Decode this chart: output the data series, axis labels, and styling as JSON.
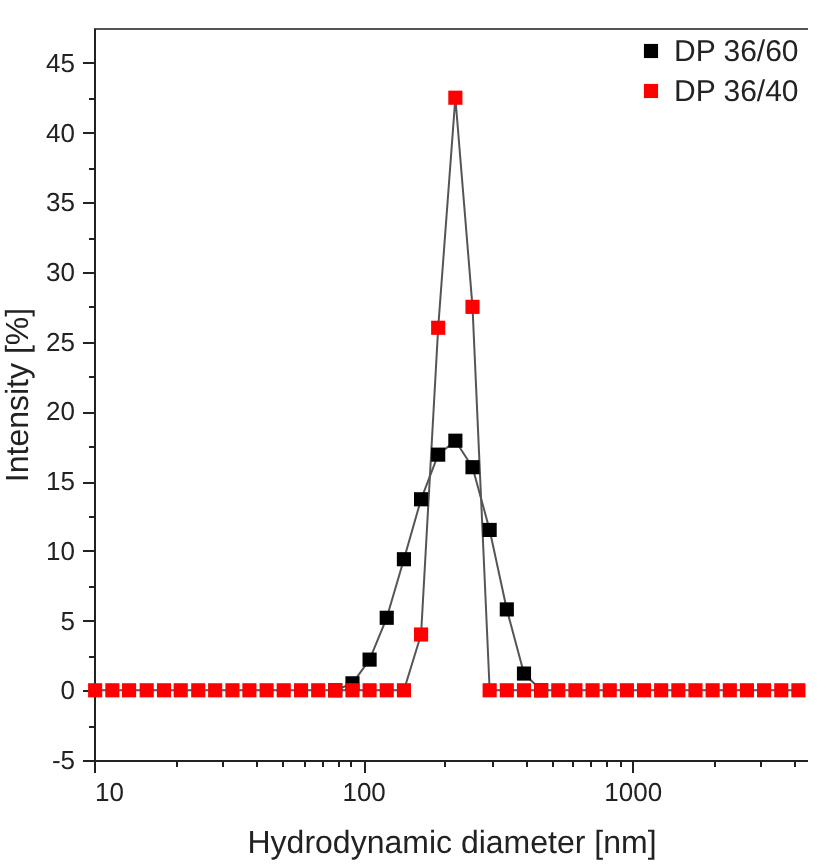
{
  "chart_data": {
    "type": "line",
    "xlabel": "Hydrodynamic diameter [nm]",
    "ylabel": "Intensity [%]",
    "log": "x",
    "marker": "square",
    "line_style": "solid",
    "grid": false,
    "legend": "top right",
    "xlim": [
      10,
      4500
    ],
    "xticks": [
      10,
      {
        "value": 20,
        "label": null
      },
      {
        "value": 30,
        "label": null
      },
      {
        "value": 40,
        "label": null
      },
      {
        "value": 50,
        "label": null
      },
      {
        "value": 60,
        "label": null
      },
      {
        "value": 70,
        "label": null
      },
      {
        "value": 80,
        "label": null
      },
      {
        "value": 90,
        "label": null
      },
      100,
      {
        "value": 200,
        "label": null
      },
      {
        "value": 300,
        "label": null
      },
      {
        "value": 400,
        "label": null
      },
      {
        "value": 500,
        "label": null
      },
      {
        "value": 600,
        "label": null
      },
      {
        "value": 700,
        "label": null
      },
      {
        "value": 800,
        "label": null
      },
      {
        "value": 900,
        "label": null
      },
      1000,
      {
        "value": 2000,
        "label": null
      },
      {
        "value": 3000,
        "label": null
      },
      {
        "value": 4000,
        "label": null
      }
    ],
    "ylim": [
      -5,
      47.5
    ],
    "yticks": [
      -5,
      {
        "value": -2.5,
        "label": null
      },
      0,
      {
        "value": 2.5,
        "label": null
      },
      5,
      {
        "value": 7.5,
        "label": null
      },
      10,
      {
        "value": 12.5,
        "label": null
      },
      15,
      {
        "value": 17.5,
        "label": null
      },
      20,
      {
        "value": 22.5,
        "label": null
      },
      25,
      {
        "value": 27.5,
        "label": null
      },
      30,
      {
        "value": 32.5,
        "label": null
      },
      35,
      {
        "value": 37.5,
        "label": null
      },
      40,
      {
        "value": 42.5,
        "label": null
      },
      45
    ],
    "series": [
      {
        "name": "DP 36/60",
        "color": "#000000",
        "x": [
          78.8,
          91.3,
          105.7,
          122.4,
          141.8,
          164.2,
          190.1,
          220.2,
          255,
          295.3,
          342,
          396.1,
          458.7
        ],
        "values": [
          0,
          0.5,
          2.2,
          5.2,
          9.4,
          13.7,
          16.9,
          17.9,
          16.0,
          11.5,
          5.8,
          1.2,
          0
        ]
      },
      {
        "name": "DP 36/40",
        "color": "#ff0000",
        "x": [
          10.1,
          11.7,
          13.5,
          15.7,
          18.2,
          21.0,
          24.4,
          28.2,
          32.7,
          37.8,
          43.8,
          50.7,
          58.8,
          68.1,
          78.8,
          91.3,
          105.7,
          122.4,
          141.8,
          164.2,
          190.1,
          220.2,
          255,
          295.3,
          342,
          396.1,
          458.7,
          531.2,
          615.1,
          712.4,
          825,
          955.4,
          1106,
          1281,
          1484,
          1718,
          1990,
          2305,
          2669,
          3091,
          3580,
          4145
        ],
        "values": [
          0,
          0,
          0,
          0,
          0,
          0,
          0,
          0,
          0,
          0,
          0,
          0,
          0,
          0,
          0,
          0,
          0,
          0,
          0,
          4.0,
          26.0,
          42.5,
          27.5,
          0,
          0,
          0,
          0,
          0,
          0,
          0,
          0,
          0,
          0,
          0,
          0,
          0,
          0,
          0,
          0,
          0,
          0,
          0
        ]
      }
    ]
  }
}
